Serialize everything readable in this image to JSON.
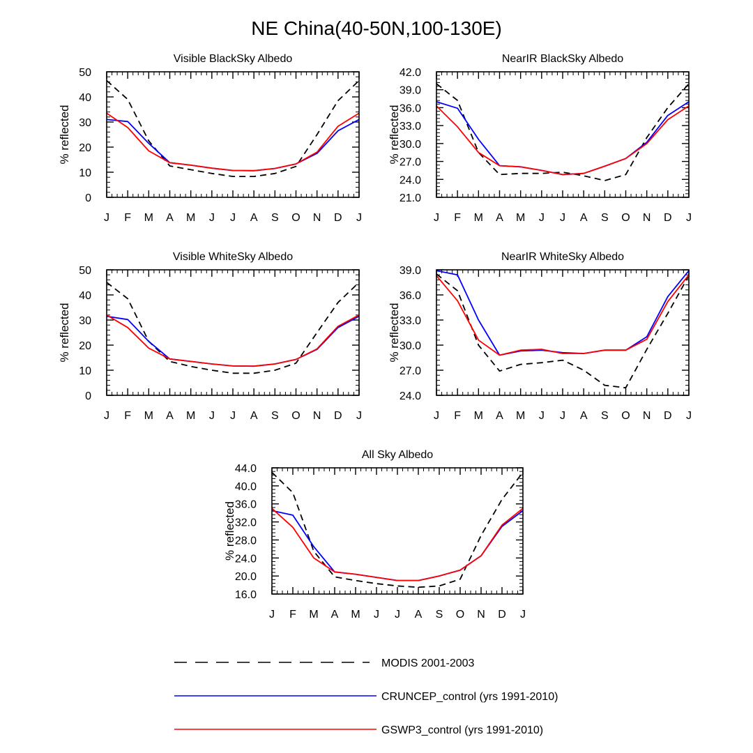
{
  "figure": {
    "title": "NE China(40-50N,100-130E)"
  },
  "legend": [
    {
      "label": "MODIS 2001-2003",
      "color": "#000000",
      "dash": true
    },
    {
      "label": "CRUNCEP_control (yrs 1991-2010)",
      "color": "#0000ff",
      "dash": false
    },
    {
      "label": "GSWP3_control (yrs 1991-2010)",
      "color": "#ff0000",
      "dash": false
    }
  ],
  "chart_data": [
    {
      "type": "line",
      "title": "Visible BlackSky Albedo",
      "ylabel": "% reflected",
      "categories": [
        "J",
        "F",
        "M",
        "A",
        "M",
        "J",
        "J",
        "A",
        "S",
        "O",
        "N",
        "D",
        "J"
      ],
      "ylim": [
        0,
        50
      ],
      "yticks": [
        "0",
        "10",
        "20",
        "30",
        "40",
        "50"
      ],
      "yticks_values": [
        0,
        10,
        20,
        30,
        40,
        50
      ],
      "series": [
        {
          "name": "MODIS 2001-2003",
          "color": "#000000",
          "dash": true,
          "values": [
            46.5,
            39.0,
            22.5,
            12.5,
            11.0,
            9.5,
            8.3,
            8.3,
            9.5,
            12.3,
            25.0,
            38.5,
            46.5
          ]
        },
        {
          "name": "CRUNCEP_control (yrs 1991-2010)",
          "color": "#0000ff",
          "dash": false,
          "values": [
            31.0,
            30.2,
            21.5,
            13.8,
            12.8,
            11.6,
            10.7,
            10.6,
            11.5,
            13.3,
            17.5,
            26.5,
            31.0
          ]
        },
        {
          "name": "GSWP3_control (yrs 1991-2010)",
          "color": "#ff0000",
          "dash": false,
          "values": [
            33.5,
            27.8,
            18.5,
            13.8,
            12.8,
            11.6,
            10.7,
            10.6,
            11.5,
            13.3,
            18.0,
            28.3,
            33.5
          ]
        }
      ]
    },
    {
      "type": "line",
      "title": "NearIR BlackSky Albedo",
      "ylabel": "% reflected",
      "categories": [
        "J",
        "F",
        "M",
        "A",
        "M",
        "J",
        "J",
        "A",
        "S",
        "O",
        "N",
        "D",
        "J"
      ],
      "ylim": [
        21.0,
        42.0
      ],
      "yticks": [
        "21.0",
        "24.0",
        "27.0",
        "30.0",
        "33.0",
        "36.0",
        "39.0",
        "42.0"
      ],
      "yticks_values": [
        21,
        24,
        27,
        30,
        33,
        36,
        39,
        42
      ],
      "series": [
        {
          "name": "MODIS 2001-2003",
          "color": "#000000",
          "dash": true,
          "values": [
            40.0,
            37.2,
            28.5,
            24.8,
            25.0,
            25.0,
            25.2,
            24.6,
            23.8,
            24.8,
            31.0,
            36.0,
            40.0
          ]
        },
        {
          "name": "CRUNCEP_control (yrs 1991-2010)",
          "color": "#0000ff",
          "dash": false,
          "values": [
            37.0,
            35.9,
            30.7,
            26.3,
            26.1,
            25.5,
            24.8,
            25.0,
            26.2,
            27.5,
            30.2,
            34.7,
            37.0
          ]
        },
        {
          "name": "GSWP3_control (yrs 1991-2010)",
          "color": "#ff0000",
          "dash": false,
          "values": [
            36.3,
            32.8,
            28.5,
            26.3,
            26.1,
            25.5,
            24.8,
            25.0,
            26.2,
            27.5,
            30.0,
            34.0,
            36.3
          ]
        }
      ]
    },
    {
      "type": "line",
      "title": "Visible WhiteSky Albedo",
      "ylabel": "% reflected",
      "categories": [
        "J",
        "F",
        "M",
        "A",
        "M",
        "J",
        "J",
        "A",
        "S",
        "O",
        "N",
        "D",
        "J"
      ],
      "ylim": [
        0,
        50
      ],
      "yticks": [
        "0",
        "10",
        "20",
        "30",
        "40",
        "50"
      ],
      "yticks_values": [
        0,
        10,
        20,
        30,
        40,
        50
      ],
      "series": [
        {
          "name": "MODIS 2001-2003",
          "color": "#000000",
          "dash": true,
          "values": [
            45.0,
            38.5,
            21.5,
            13.5,
            11.5,
            10.0,
            8.8,
            8.8,
            10.0,
            12.8,
            25.0,
            37.0,
            45.0
          ]
        },
        {
          "name": "CRUNCEP_control (yrs 1991-2010)",
          "color": "#0000ff",
          "dash": false,
          "values": [
            31.5,
            30.2,
            21.5,
            14.5,
            13.5,
            12.5,
            11.7,
            11.6,
            12.5,
            14.3,
            18.3,
            27.0,
            31.5
          ]
        },
        {
          "name": "GSWP3_control (yrs 1991-2010)",
          "color": "#ff0000",
          "dash": false,
          "values": [
            32.0,
            27.0,
            18.8,
            14.5,
            13.5,
            12.5,
            11.7,
            11.6,
            12.5,
            14.3,
            18.5,
            27.5,
            32.0
          ]
        }
      ]
    },
    {
      "type": "line",
      "title": "NearIR WhiteSky Albedo",
      "ylabel": "% reflected",
      "categories": [
        "J",
        "F",
        "M",
        "A",
        "M",
        "J",
        "J",
        "A",
        "S",
        "O",
        "N",
        "D",
        "J"
      ],
      "ylim": [
        24.0,
        39.0
      ],
      "yticks": [
        "24.0",
        "27.0",
        "30.0",
        "33.0",
        "36.0",
        "39.0"
      ],
      "yticks_values": [
        24,
        27,
        30,
        33,
        36,
        39
      ],
      "series": [
        {
          "name": "MODIS 2001-2003",
          "color": "#000000",
          "dash": true,
          "values": [
            38.5,
            36.5,
            30.0,
            26.9,
            27.7,
            27.9,
            28.2,
            27.0,
            25.2,
            24.9,
            29.5,
            33.8,
            38.3
          ]
        },
        {
          "name": "CRUNCEP_control (yrs 1991-2010)",
          "color": "#0000ff",
          "dash": false,
          "values": [
            38.9,
            38.4,
            33.0,
            28.8,
            29.3,
            29.4,
            29.1,
            29.0,
            29.4,
            29.4,
            31.0,
            35.8,
            38.9
          ]
        },
        {
          "name": "GSWP3_control (yrs 1991-2010)",
          "color": "#ff0000",
          "dash": false,
          "values": [
            38.3,
            35.3,
            30.6,
            28.8,
            29.4,
            29.5,
            29.0,
            29.0,
            29.4,
            29.4,
            30.7,
            35.2,
            38.4
          ]
        }
      ]
    },
    {
      "type": "line",
      "title": "All Sky Albedo",
      "ylabel": "% reflected",
      "categories": [
        "J",
        "F",
        "M",
        "A",
        "M",
        "J",
        "J",
        "A",
        "S",
        "O",
        "N",
        "D",
        "J"
      ],
      "ylim": [
        16.0,
        44.0
      ],
      "yticks": [
        "16.0",
        "20.0",
        "24.0",
        "28.0",
        "32.0",
        "36.0",
        "40.0",
        "44.0"
      ],
      "yticks_values": [
        16,
        20,
        24,
        28,
        32,
        36,
        40,
        44
      ],
      "series": [
        {
          "name": "MODIS 2001-2003",
          "color": "#000000",
          "dash": true,
          "values": [
            43.0,
            38.5,
            25.5,
            19.8,
            19.0,
            18.3,
            17.8,
            17.5,
            17.8,
            19.3,
            29.0,
            37.0,
            43.0
          ]
        },
        {
          "name": "CRUNCEP_control (yrs 1991-2010)",
          "color": "#0000ff",
          "dash": false,
          "values": [
            34.5,
            33.5,
            26.5,
            20.9,
            20.4,
            19.7,
            19.0,
            19.0,
            20.0,
            21.3,
            24.5,
            31.0,
            34.5
          ]
        },
        {
          "name": "GSWP3_control (yrs 1991-2010)",
          "color": "#ff0000",
          "dash": false,
          "values": [
            35.0,
            30.8,
            24.0,
            20.9,
            20.4,
            19.7,
            19.0,
            19.0,
            20.0,
            21.3,
            24.5,
            31.3,
            35.0
          ]
        }
      ]
    }
  ]
}
